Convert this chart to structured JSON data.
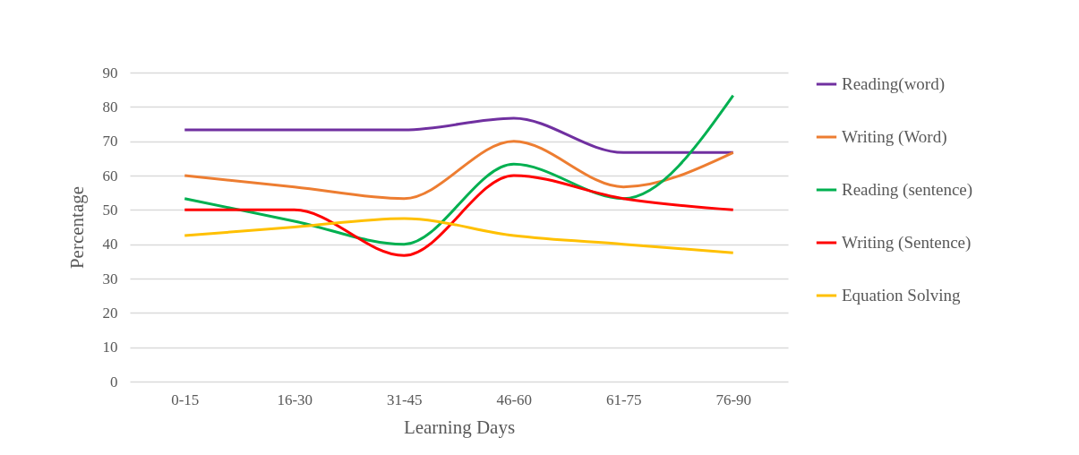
{
  "chart_data": {
    "type": "line",
    "xlabel": "Learning Days",
    "ylabel": "Percentage",
    "categories": [
      "0-15",
      "16-30",
      "31-45",
      "46-60",
      "61-75",
      "76-90"
    ],
    "series": [
      {
        "name": "Reading(word)",
        "color": "#7030a0",
        "values": [
          73.3,
          73.3,
          73.3,
          76.7,
          66.7,
          66.7
        ]
      },
      {
        "name": "Writing (Word)",
        "color": "#ed7d31",
        "values": [
          60,
          56.7,
          53.3,
          70,
          56.7,
          66.7
        ]
      },
      {
        "name": "Reading (sentence)",
        "color": "#00b050",
        "values": [
          53.3,
          46.7,
          40,
          63.3,
          53.3,
          83.3
        ]
      },
      {
        "name": "Writing (Sentence)",
        "color": "#ff0000",
        "values": [
          50,
          50,
          36.7,
          60,
          53.3,
          50
        ]
      },
      {
        "name": "Equation Solving",
        "color": "#ffc000",
        "values": [
          42.5,
          45,
          47.5,
          42.5,
          40,
          37.5
        ]
      }
    ],
    "ylim": [
      0,
      90
    ],
    "yticks": [
      0,
      10,
      20,
      30,
      40,
      50,
      60,
      70,
      80,
      90
    ],
    "grid": "y",
    "legend": "right",
    "marker": "none",
    "line_style": "solid"
  }
}
